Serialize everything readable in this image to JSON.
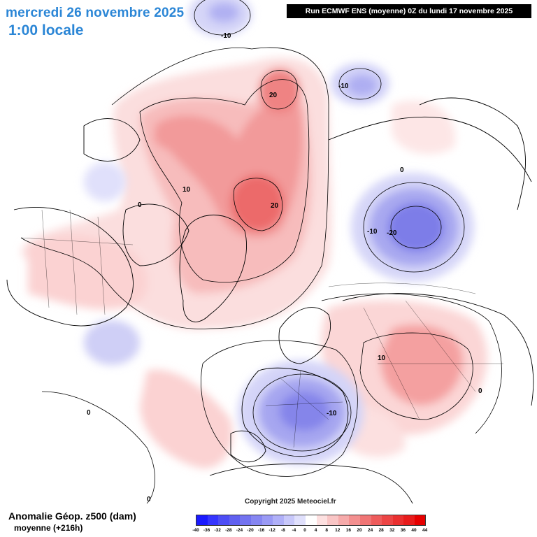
{
  "header": {
    "date": "mercredi 26 novembre 2025",
    "time": "1:00 locale",
    "run": "Run ECMWF ENS (moyenne) 0Z du lundi 17 novembre 2025"
  },
  "footer": {
    "variable": "Anomalie Géop. z500 (dam)",
    "subtitle": "moyenne   (+216h)",
    "copyright": "Copyright 2025 Meteociel.fr"
  },
  "legend": {
    "ticks": [
      "-40",
      "-36",
      "-32",
      "-28",
      "-24",
      "-20",
      "-16",
      "-12",
      "-8",
      "-4",
      "0",
      "4",
      "8",
      "12",
      "16",
      "20",
      "24",
      "28",
      "32",
      "36",
      "40",
      "44"
    ],
    "colors": [
      "#1a1aff",
      "#3535ff",
      "#4d4df5",
      "#6060f0",
      "#7373f0",
      "#8686f2",
      "#9a9af5",
      "#b0b0f8",
      "#c8c8fa",
      "#e0e0fc",
      "#ffffff",
      "#fde0e0",
      "#f9c5c5",
      "#f6aaaa",
      "#f38f8f",
      "#f07575",
      "#ee5c5c",
      "#ec4545",
      "#ea3030",
      "#e81c1c",
      "#e60000"
    ]
  },
  "contour_labels": [
    "-10",
    "20",
    "20",
    "10",
    "0",
    "-10",
    "-10",
    "-20",
    "0",
    "10",
    "-10",
    "0",
    "0",
    "0"
  ],
  "anomaly_centers": [
    {
      "name": "ridge-canadian-arctic",
      "value": 20
    },
    {
      "name": "ridge-greenland",
      "value": 20
    },
    {
      "name": "trough-western-siberia",
      "value": -20
    },
    {
      "name": "trough-central-europe",
      "value": -10
    },
    {
      "name": "ridge-central-asia",
      "value": 10
    }
  ],
  "colors": {
    "title": "#2b86d6",
    "run_box_bg": "#000000",
    "run_box_text": "#ffffff"
  }
}
